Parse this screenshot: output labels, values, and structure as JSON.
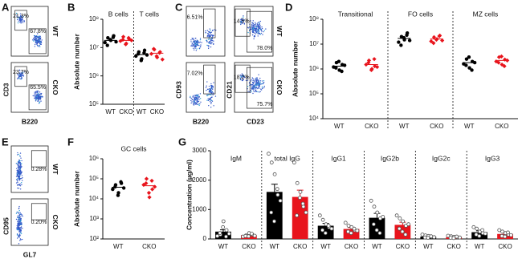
{
  "chart_data": [
    {
      "type": "flow",
      "panel": "A",
      "x_label": "B220",
      "y_label": "CD3",
      "rows": [
        {
          "name": "WT",
          "gates": [
            [
              "21.3%",
              "67.8%"
            ]
          ]
        },
        {
          "name": "CKO",
          "gates": [
            [
              "23.7%",
              "65.5%"
            ]
          ]
        }
      ]
    },
    {
      "type": "dot",
      "panel": "B",
      "y_label": "Absolute number",
      "log_scale": true,
      "ylim": [
        100000,
        100000000
      ],
      "yticks": [
        {
          "value": 100000,
          "label": "10⁵"
        },
        {
          "value": 1000000,
          "label": "10⁶"
        },
        {
          "value": 10000000,
          "label": "10⁷"
        },
        {
          "value": 100000000,
          "label": "10⁸"
        }
      ],
      "groups": [
        {
          "name": "B cells",
          "series": [
            {
              "name": "WT",
              "color": "#000000",
              "marker": "circle",
              "mean": 18000000,
              "points": [
                15000000,
                22000000,
                18000000,
                26000000,
                12000000,
                19000000,
                23000000,
                16000000
              ]
            },
            {
              "name": "CKO",
              "color": "#e8141c",
              "marker": "diamond",
              "mean": 18000000,
              "points": [
                17000000,
                24000000,
                14000000,
                20000000,
                19000000,
                13000000,
                22000000,
                18000000
              ]
            }
          ]
        },
        {
          "name": "T cells",
          "series": [
            {
              "name": "WT",
              "color": "#000000",
              "marker": "circle",
              "mean": 5700000,
              "points": [
                5000000,
                7000000,
                4000000,
                8000000,
                6000000,
                3500000,
                6500000,
                5500000
              ]
            },
            {
              "name": "CKO",
              "color": "#e8141c",
              "marker": "diamond",
              "mean": 6300000,
              "points": [
                6000000,
                8500000,
                4500000,
                7000000,
                9000000,
                5000000,
                6500000,
                3800000
              ]
            }
          ]
        }
      ]
    },
    {
      "type": "flow",
      "panel": "C",
      "columns": [
        {
          "x_label": "B220",
          "y_label": "CD93"
        },
        {
          "x_label": "CD23",
          "y_label": "CD21"
        }
      ],
      "rows": [
        {
          "name": "WT",
          "gates": [
            [
              "6.51%"
            ],
            [
              "14.5%",
              "78.0%"
            ]
          ]
        },
        {
          "name": "CKO",
          "gates": [
            [
              "7.02%"
            ],
            [
              "18.2%",
              "75.7%"
            ]
          ]
        }
      ]
    },
    {
      "type": "dot",
      "panel": "D",
      "y_label": "Absolute number",
      "log_scale": true,
      "ylim": [
        10000,
        100000000
      ],
      "yticks": [
        {
          "value": 10000,
          "label": "10⁴"
        },
        {
          "value": 100000,
          "label": "10⁵"
        },
        {
          "value": 1000000,
          "label": "10⁶"
        },
        {
          "value": 10000000,
          "label": "10⁷"
        },
        {
          "value": 100000000,
          "label": "10⁸"
        }
      ],
      "groups": [
        {
          "name": "Transitional",
          "series": [
            {
              "name": "WT",
              "color": "#000000",
              "marker": "circle",
              "mean": 1300000,
              "points": [
                1200000,
                1800000,
                900000,
                1500000,
                1100000,
                2000000,
                800000,
                1400000
              ]
            },
            {
              "name": "CKO",
              "color": "#e8141c",
              "marker": "diamond",
              "mean": 1500000,
              "points": [
                1500000,
                2200000,
                1000000,
                1300000,
                1800000,
                900000,
                2500000,
                1200000
              ]
            }
          ]
        },
        {
          "name": "FO cells",
          "series": [
            {
              "name": "WT",
              "color": "#000000",
              "marker": "circle",
              "mean": 17000000,
              "points": [
                12000000,
                20000000,
                15000000,
                28000000,
                9000000,
                18000000,
                23000000,
                14000000
              ]
            },
            {
              "name": "CKO",
              "color": "#e8141c",
              "marker": "diamond",
              "mean": 16000000,
              "points": [
                13000000,
                19000000,
                16000000,
                22000000,
                11000000,
                15000000,
                21000000,
                14000000
              ]
            }
          ]
        },
        {
          "name": "MZ cells",
          "series": [
            {
              "name": "WT",
              "color": "#000000",
              "marker": "circle",
              "mean": 1800000,
              "points": [
                1600000,
                2500000,
                1100000,
                2000000,
                1400000,
                3000000,
                900000,
                1800000
              ]
            },
            {
              "name": "CKO",
              "color": "#e8141c",
              "marker": "diamond",
              "mean": 2200000,
              "points": [
                2000000,
                3000000,
                1500000,
                2400000,
                1800000,
                3200000,
                1300000,
                2200000
              ]
            }
          ]
        }
      ]
    },
    {
      "type": "flow",
      "panel": "E",
      "x_label": "GL7",
      "y_label": "CD95",
      "rows": [
        {
          "name": "WT",
          "gates": [
            [
              "0.28%"
            ]
          ]
        },
        {
          "name": "CKO",
          "gates": [
            [
              "0.20%"
            ]
          ]
        }
      ]
    },
    {
      "type": "dot",
      "panel": "F",
      "y_label": "Absolute number",
      "log_scale": true,
      "ylim": [
        100,
        1000000
      ],
      "yticks": [
        {
          "value": 100,
          "label": "10²"
        },
        {
          "value": 1000,
          "label": "10³"
        },
        {
          "value": 10000,
          "label": "10⁴"
        },
        {
          "value": 100000,
          "label": "10⁵"
        },
        {
          "value": 1000000,
          "label": "10⁶"
        }
      ],
      "groups": [
        {
          "name": "GC cells",
          "series": [
            {
              "name": "WT",
              "color": "#000000",
              "marker": "circle",
              "mean": 38000,
              "points": [
                30000,
                50000,
                20000,
                60000,
                40000,
                15000,
                70000,
                35000
              ]
            },
            {
              "name": "CKO",
              "color": "#e8141c",
              "marker": "diamond",
              "mean": 45000,
              "points": [
                50000,
                100000,
                12000,
                30000,
                60000,
                20000,
                80000,
                40000
              ]
            }
          ]
        }
      ]
    },
    {
      "type": "bar",
      "panel": "G",
      "y_label": "Concentration (µg/ml)",
      "ylim": [
        0,
        3000
      ],
      "yticks": [
        0,
        1000,
        2000,
        3000
      ],
      "groups": [
        {
          "name": "IgM",
          "series": [
            {
              "name": "WT",
              "color": "#000000",
              "value": 250,
              "error": 60,
              "points": [
                100,
                150,
                600,
                300,
                200,
                400,
                80,
                180
              ]
            },
            {
              "name": "CKO",
              "color": "#e8141c",
              "value": 130,
              "error": 25,
              "points": [
                80,
                120,
                200,
                150,
                100,
                90,
                180,
                110
              ]
            }
          ]
        },
        {
          "name": "total IgG",
          "series": [
            {
              "name": "WT",
              "color": "#000000",
              "value": 1600,
              "error": 260,
              "points": [
                2900,
                2600,
                2200,
                1500,
                900,
                600,
                1700,
                1300
              ]
            },
            {
              "name": "CKO",
              "color": "#e8141c",
              "value": 1430,
              "error": 230,
              "points": [
                2600,
                1900,
                1600,
                1100,
                800,
                1400,
                1200,
                900
              ]
            }
          ]
        },
        {
          "name": "IgG1",
          "series": [
            {
              "name": "WT",
              "color": "#000000",
              "value": 450,
              "error": 80,
              "points": [
                800,
                650,
                500,
                400,
                300,
                200,
                450,
                350
              ]
            },
            {
              "name": "CKO",
              "color": "#e8141c",
              "value": 340,
              "error": 50,
              "points": [
                550,
                450,
                400,
                300,
                250,
                200,
                350,
                280
              ]
            }
          ]
        },
        {
          "name": "IgG2b",
          "series": [
            {
              "name": "WT",
              "color": "#000000",
              "value": 720,
              "error": 150,
              "points": [
                1300,
                1100,
                900,
                700,
                500,
                300,
                200,
                750
              ]
            },
            {
              "name": "CKO",
              "color": "#e8141c",
              "value": 480,
              "error": 90,
              "points": [
                800,
                700,
                600,
                450,
                350,
                250,
                150,
                500
              ]
            }
          ]
        },
        {
          "name": "IgG2c",
          "series": [
            {
              "name": "WT",
              "color": "#000000",
              "value": 80,
              "error": 20,
              "points": [
                150,
                120,
                100,
                70,
                50,
                40,
                90,
                60
              ]
            },
            {
              "name": "CKO",
              "color": "#e8141c",
              "value": 60,
              "error": 15,
              "points": [
                110,
                90,
                70,
                60,
                40,
                30,
                80,
                50
              ]
            }
          ]
        },
        {
          "name": "IgG3",
          "series": [
            {
              "name": "WT",
              "color": "#000000",
              "value": 230,
              "error": 45,
              "points": [
                400,
                350,
                250,
                200,
                150,
                100,
                300,
                180
              ]
            },
            {
              "name": "CKO",
              "color": "#e8141c",
              "value": 170,
              "error": 30,
              "points": [
                300,
                250,
                200,
                150,
                100,
                80,
                220,
                130
              ]
            }
          ]
        }
      ]
    }
  ]
}
